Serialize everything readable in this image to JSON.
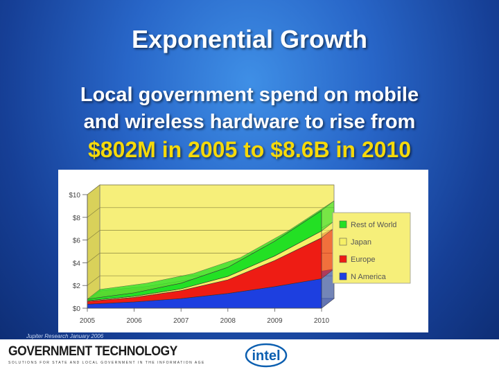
{
  "slide": {
    "title": "Exponential Growth",
    "subtitle_line1": "Local government spend on mobile",
    "subtitle_line2": "and wireless hardware to rise from",
    "highlight": "$802M in 2005 to $8.6B in 2010",
    "source": "Jupiter Research January 2006",
    "footer_brand": "GOVERNMENT TECHNOLOGY",
    "footer_tagline": "SOLUTIONS FOR STATE AND LOCAL GOVERNMENT IN THE INFORMATION AGE",
    "intel_logo_text": "intel",
    "colors": {
      "highlight": "#f5d90a",
      "plot_bg": "#f6ef7a"
    }
  },
  "chart_data": {
    "type": "area",
    "stacked": true,
    "title": "",
    "xlabel": "",
    "ylabel": "",
    "x": [
      "2005",
      "2006",
      "2007",
      "2008",
      "2009",
      "2010"
    ],
    "yticks": [
      "$0",
      "$2",
      "$4",
      "$6",
      "$8",
      "$10"
    ],
    "ylim": [
      0,
      10
    ],
    "legend_position": "right",
    "series": [
      {
        "name": "N America",
        "color": "#1d3fe0",
        "values": [
          0.35,
          0.55,
          0.85,
          1.3,
          1.9,
          2.6
        ]
      },
      {
        "name": "Europe",
        "color": "#ee1c14",
        "values": [
          0.25,
          0.4,
          0.7,
          1.2,
          2.3,
          3.6
        ]
      },
      {
        "name": "Japan",
        "color": "#f6f066",
        "values": [
          0.06,
          0.1,
          0.15,
          0.3,
          0.4,
          0.6
        ]
      },
      {
        "name": "Rest of World",
        "color": "#23e024",
        "values": [
          0.14,
          0.3,
          0.5,
          0.8,
          1.3,
          1.8
        ]
      }
    ],
    "legend_order": [
      "Rest of World",
      "Japan",
      "Europe",
      "N America"
    ]
  }
}
